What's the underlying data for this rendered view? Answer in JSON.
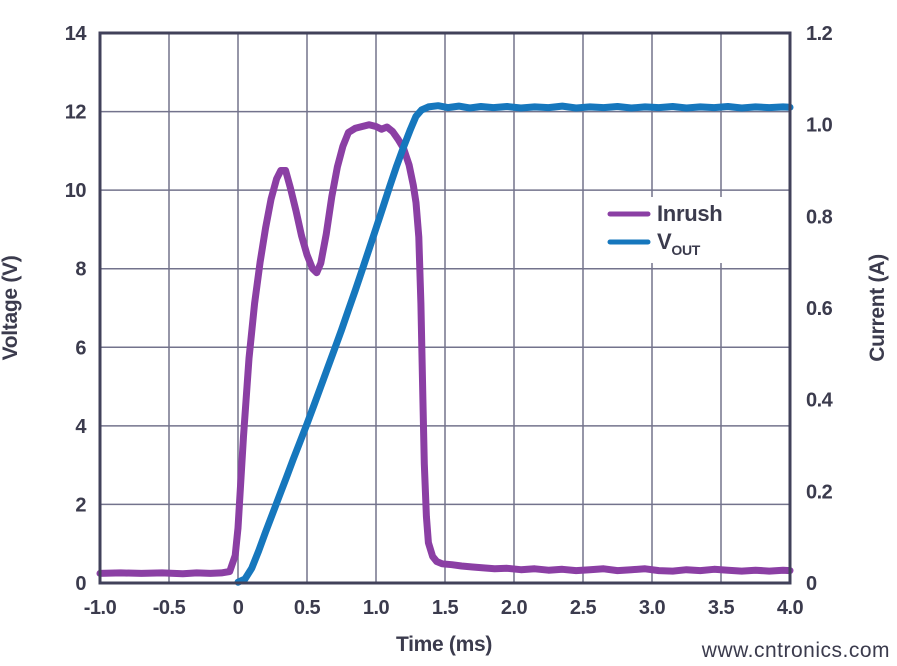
{
  "page": {
    "background": "#ffffff"
  },
  "colors": {
    "text": "#3b3b4d",
    "frame": "#41415a",
    "grid": "#73738c",
    "legend_bg": "#ffffff"
  },
  "watermark": {
    "text": "www.cntronics.com",
    "color": "#b7e2ae"
  },
  "chart_data": {
    "type": "line",
    "title": "",
    "xlabel": "Time (ms)",
    "ylabel_left": "Voltage (V)",
    "ylabel_right": "Current (A)",
    "x_range": [
      -1.0,
      4.0
    ],
    "y_left_range": [
      0,
      14
    ],
    "y_right_range": [
      0,
      1.2
    ],
    "grid": true,
    "legend_position": "inside-right",
    "x_ticks": [
      {
        "value": -1.0,
        "label": "-1.0"
      },
      {
        "value": -0.5,
        "label": "-0.5"
      },
      {
        "value": 0.0,
        "label": "0"
      },
      {
        "value": 0.5,
        "label": "0.5"
      },
      {
        "value": 1.0,
        "label": "1.0"
      },
      {
        "value": 1.5,
        "label": "1.5"
      },
      {
        "value": 2.0,
        "label": "2.0"
      },
      {
        "value": 2.5,
        "label": "2.5"
      },
      {
        "value": 3.0,
        "label": "3.0"
      },
      {
        "value": 3.5,
        "label": "3.5"
      },
      {
        "value": 4.0,
        "label": "4.0"
      }
    ],
    "y_left_ticks": [
      {
        "value": 0,
        "label": "0"
      },
      {
        "value": 2,
        "label": "2"
      },
      {
        "value": 4,
        "label": "4"
      },
      {
        "value": 6,
        "label": "6"
      },
      {
        "value": 8,
        "label": "8"
      },
      {
        "value": 10,
        "label": "10"
      },
      {
        "value": 12,
        "label": "12"
      },
      {
        "value": 14,
        "label": "14"
      }
    ],
    "y_right_ticks": [
      {
        "value": 0.0,
        "label": "0"
      },
      {
        "value": 0.2,
        "label": "0.2"
      },
      {
        "value": 0.4,
        "label": "0.4"
      },
      {
        "value": 0.6,
        "label": "0.6"
      },
      {
        "value": 0.8,
        "label": "0.8"
      },
      {
        "value": 1.0,
        "label": "1.0"
      },
      {
        "value": 1.2,
        "label": "1.2"
      }
    ],
    "series": [
      {
        "name": "Inrush",
        "legend_label": "Inrush",
        "axis": "right",
        "unit": "A",
        "color": "#8b3fa4",
        "points": [
          [
            -1.0,
            0.021
          ],
          [
            -0.85,
            0.022
          ],
          [
            -0.7,
            0.021
          ],
          [
            -0.55,
            0.022
          ],
          [
            -0.4,
            0.02
          ],
          [
            -0.3,
            0.022
          ],
          [
            -0.2,
            0.021
          ],
          [
            -0.12,
            0.022
          ],
          [
            -0.06,
            0.025
          ],
          [
            -0.02,
            0.06
          ],
          [
            0.0,
            0.12
          ],
          [
            0.04,
            0.32
          ],
          [
            0.08,
            0.49
          ],
          [
            0.12,
            0.61
          ],
          [
            0.16,
            0.7
          ],
          [
            0.2,
            0.775
          ],
          [
            0.24,
            0.838
          ],
          [
            0.28,
            0.882
          ],
          [
            0.31,
            0.9
          ],
          [
            0.345,
            0.9
          ],
          [
            0.38,
            0.862
          ],
          [
            0.42,
            0.812
          ],
          [
            0.46,
            0.758
          ],
          [
            0.5,
            0.716
          ],
          [
            0.54,
            0.686
          ],
          [
            0.57,
            0.677
          ],
          [
            0.6,
            0.698
          ],
          [
            0.64,
            0.762
          ],
          [
            0.68,
            0.843
          ],
          [
            0.72,
            0.908
          ],
          [
            0.76,
            0.953
          ],
          [
            0.8,
            0.983
          ],
          [
            0.85,
            0.992
          ],
          [
            0.9,
            0.996
          ],
          [
            0.95,
            1.0
          ],
          [
            1.0,
            0.996
          ],
          [
            1.04,
            0.99
          ],
          [
            1.08,
            0.995
          ],
          [
            1.12,
            0.985
          ],
          [
            1.16,
            0.968
          ],
          [
            1.2,
            0.948
          ],
          [
            1.24,
            0.912
          ],
          [
            1.27,
            0.868
          ],
          [
            1.29,
            0.83
          ],
          [
            1.31,
            0.755
          ],
          [
            1.325,
            0.61
          ],
          [
            1.34,
            0.4
          ],
          [
            1.35,
            0.26
          ],
          [
            1.365,
            0.145
          ],
          [
            1.38,
            0.088
          ],
          [
            1.41,
            0.058
          ],
          [
            1.44,
            0.047
          ],
          [
            1.48,
            0.042
          ],
          [
            1.55,
            0.04
          ],
          [
            1.62,
            0.037
          ],
          [
            1.7,
            0.035
          ],
          [
            1.78,
            0.033
          ],
          [
            1.86,
            0.031
          ],
          [
            1.95,
            0.032
          ],
          [
            2.05,
            0.029
          ],
          [
            2.15,
            0.031
          ],
          [
            2.25,
            0.028
          ],
          [
            2.35,
            0.03
          ],
          [
            2.45,
            0.027
          ],
          [
            2.55,
            0.029
          ],
          [
            2.65,
            0.031
          ],
          [
            2.75,
            0.027
          ],
          [
            2.85,
            0.029
          ],
          [
            2.95,
            0.031
          ],
          [
            3.05,
            0.027
          ],
          [
            3.15,
            0.026
          ],
          [
            3.25,
            0.029
          ],
          [
            3.35,
            0.027
          ],
          [
            3.45,
            0.03
          ],
          [
            3.55,
            0.028
          ],
          [
            3.65,
            0.026
          ],
          [
            3.75,
            0.028
          ],
          [
            3.85,
            0.026
          ],
          [
            3.95,
            0.028
          ],
          [
            4.0,
            0.027
          ]
        ]
      },
      {
        "name": "VOUT",
        "legend_label": "V",
        "legend_label_sub": "OUT",
        "axis": "left",
        "unit": "V",
        "color": "#1677bd",
        "points": [
          [
            0.0,
            0.02
          ],
          [
            0.05,
            0.1
          ],
          [
            0.1,
            0.38
          ],
          [
            0.15,
            0.82
          ],
          [
            0.2,
            1.3
          ],
          [
            0.25,
            1.76
          ],
          [
            0.3,
            2.22
          ],
          [
            0.35,
            2.68
          ],
          [
            0.4,
            3.15
          ],
          [
            0.45,
            3.6
          ],
          [
            0.5,
            4.05
          ],
          [
            0.55,
            4.52
          ],
          [
            0.6,
            5.0
          ],
          [
            0.65,
            5.48
          ],
          [
            0.7,
            5.96
          ],
          [
            0.75,
            6.44
          ],
          [
            0.8,
            6.95
          ],
          [
            0.85,
            7.45
          ],
          [
            0.9,
            7.97
          ],
          [
            0.95,
            8.5
          ],
          [
            1.0,
            9.03
          ],
          [
            1.05,
            9.56
          ],
          [
            1.1,
            10.1
          ],
          [
            1.15,
            10.62
          ],
          [
            1.2,
            11.1
          ],
          [
            1.25,
            11.55
          ],
          [
            1.29,
            11.88
          ],
          [
            1.33,
            12.04
          ],
          [
            1.38,
            12.12
          ],
          [
            1.45,
            12.15
          ],
          [
            1.52,
            12.1
          ],
          [
            1.6,
            12.14
          ],
          [
            1.68,
            12.09
          ],
          [
            1.76,
            12.13
          ],
          [
            1.85,
            12.1
          ],
          [
            1.95,
            12.13
          ],
          [
            2.05,
            12.09
          ],
          [
            2.15,
            12.12
          ],
          [
            2.25,
            12.1
          ],
          [
            2.35,
            12.14
          ],
          [
            2.45,
            12.09
          ],
          [
            2.55,
            12.12
          ],
          [
            2.65,
            12.1
          ],
          [
            2.75,
            12.13
          ],
          [
            2.85,
            12.09
          ],
          [
            2.95,
            12.12
          ],
          [
            3.05,
            12.1
          ],
          [
            3.15,
            12.13
          ],
          [
            3.25,
            12.09
          ],
          [
            3.35,
            12.12
          ],
          [
            3.45,
            12.1
          ],
          [
            3.55,
            12.13
          ],
          [
            3.65,
            12.09
          ],
          [
            3.75,
            12.12
          ],
          [
            3.85,
            12.1
          ],
          [
            3.95,
            12.12
          ],
          [
            4.0,
            12.11
          ]
        ]
      }
    ]
  }
}
